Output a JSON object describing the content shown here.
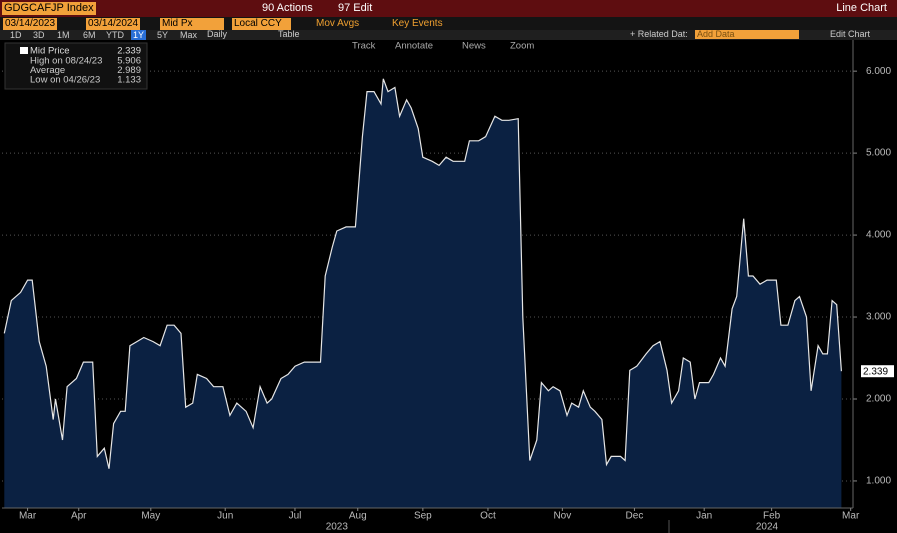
{
  "toolbar": {
    "ticker": "GDGCAFJP Index",
    "actions": "90 Actions",
    "edit": "97 Edit",
    "chart_kind": "Line Chart",
    "start_date": "03/14/2023",
    "end_date": "03/14/2024",
    "field": "Mid Px",
    "currency": "Local CCY",
    "mov_avgs": "Mov Avgs",
    "key_events": "Key Events",
    "periods": [
      "1D",
      "3D",
      "1M",
      "6M",
      "YTD",
      "1Y",
      "5Y",
      "Max"
    ],
    "selected_period": "1Y",
    "frequency": "Daily",
    "table": "Table",
    "related": "+ Related Dat:",
    "add_data": "Add Data",
    "edit_chart": "Edit Chart",
    "tools": [
      "Track",
      "Annotate",
      "News",
      "Zoom"
    ]
  },
  "chart_data": {
    "type": "area",
    "series": [
      {
        "name": "Mid Price",
        "color": "#e6e6e6",
        "fill": "#0b2142",
        "x": [
          1,
          4,
          8,
          11,
          13,
          16,
          19,
          22,
          23,
          26,
          28,
          32,
          35,
          39,
          41,
          44,
          46,
          48,
          51,
          53,
          55,
          58,
          61,
          65,
          68,
          71,
          74,
          77,
          79,
          82,
          84,
          88,
          91,
          95,
          98,
          101,
          105,
          108,
          111,
          114,
          116,
          120,
          123,
          126,
          130,
          133,
          137,
          139,
          142,
          144,
          148,
          152,
          155,
          157,
          160,
          163,
          164,
          166,
          169,
          171,
          174,
          176,
          179,
          181,
          185,
          188,
          191,
          194,
          196,
          199,
          201,
          205,
          208,
          212,
          215,
          218,
          222,
          224,
          227,
          230,
          232,
          235,
          237,
          240,
          243,
          245,
          248,
          250,
          253,
          255,
          258,
          260,
          262,
          266,
          268,
          270,
          273,
          277,
          280,
          283,
          286,
          288,
          291,
          293,
          296,
          298,
          300,
          304,
          306,
          309,
          311,
          314,
          316,
          319,
          321,
          323,
          326,
          329,
          333,
          335,
          338,
          341,
          343,
          346,
          348,
          351,
          353,
          355,
          357,
          359,
          361
        ],
        "values": [
          2.8,
          3.2,
          3.3,
          3.45,
          3.45,
          2.7,
          2.4,
          1.75,
          2.0,
          1.5,
          2.15,
          2.25,
          2.45,
          2.45,
          1.3,
          1.4,
          1.15,
          1.7,
          1.85,
          1.85,
          2.65,
          2.7,
          2.75,
          2.7,
          2.65,
          2.9,
          2.9,
          2.8,
          1.9,
          1.95,
          2.3,
          2.25,
          2.15,
          2.15,
          1.8,
          1.95,
          1.85,
          1.65,
          2.15,
          1.95,
          2.0,
          2.25,
          2.3,
          2.4,
          2.45,
          2.45,
          2.45,
          3.5,
          3.85,
          4.05,
          4.1,
          4.1,
          5.2,
          5.75,
          5.75,
          5.6,
          5.906,
          5.75,
          5.8,
          5.45,
          5.65,
          5.55,
          5.3,
          4.95,
          4.9,
          4.85,
          4.95,
          4.9,
          4.9,
          4.9,
          5.15,
          5.15,
          5.2,
          5.45,
          5.4,
          5.4,
          5.42,
          3.0,
          1.25,
          1.5,
          2.2,
          2.1,
          2.15,
          2.1,
          1.8,
          1.95,
          1.9,
          2.1,
          1.9,
          1.85,
          1.75,
          1.2,
          1.3,
          1.3,
          1.25,
          2.35,
          2.4,
          2.55,
          2.65,
          2.7,
          2.35,
          1.95,
          2.1,
          2.5,
          2.45,
          2.0,
          2.2,
          2.2,
          2.3,
          2.5,
          2.4,
          3.1,
          3.25,
          4.2,
          3.5,
          3.5,
          3.4,
          3.45,
          3.45,
          2.9,
          2.9,
          3.2,
          3.25,
          3.0,
          2.1,
          2.65,
          2.55,
          2.55,
          3.2,
          3.15,
          2.339
        ]
      }
    ],
    "legend": [
      {
        "label": "High on 08/24/23",
        "value": 5.906
      },
      {
        "label": "Average",
        "value": 2.989
      },
      {
        "label": "Low on 04/26/23",
        "value": 1.133
      }
    ],
    "last_value": 2.339,
    "xlim": [
      0,
      366
    ],
    "xticks": [
      {
        "value": 11,
        "label": "Mar"
      },
      {
        "value": 33,
        "label": "Apr"
      },
      {
        "value": 64,
        "label": "May"
      },
      {
        "value": 96,
        "label": "Jun"
      },
      {
        "value": 126,
        "label": "Jul"
      },
      {
        "value": 153,
        "label": "Aug"
      },
      {
        "value": 181,
        "label": "Sep"
      },
      {
        "value": 209,
        "label": "Oct"
      },
      {
        "value": 241,
        "label": "Nov"
      },
      {
        "value": 272,
        "label": "Dec"
      },
      {
        "value": 302,
        "label": "Jan"
      },
      {
        "value": 331,
        "label": "Feb"
      },
      {
        "value": 365,
        "label": "Mar"
      }
    ],
    "year_ticks": [
      {
        "value": 144,
        "label": "2023"
      },
      {
        "value": 329,
        "label": "2024"
      }
    ],
    "ylim": [
      0.67,
      6.38
    ],
    "yticks": [
      {
        "value": 1,
        "label": "1.000"
      },
      {
        "value": 2,
        "label": "2.000"
      },
      {
        "value": 3,
        "label": "3.000"
      },
      {
        "value": 4,
        "label": "4.000"
      },
      {
        "value": 5,
        "label": "5.000"
      },
      {
        "value": 6,
        "label": "6.000"
      }
    ],
    "grid": true
  }
}
